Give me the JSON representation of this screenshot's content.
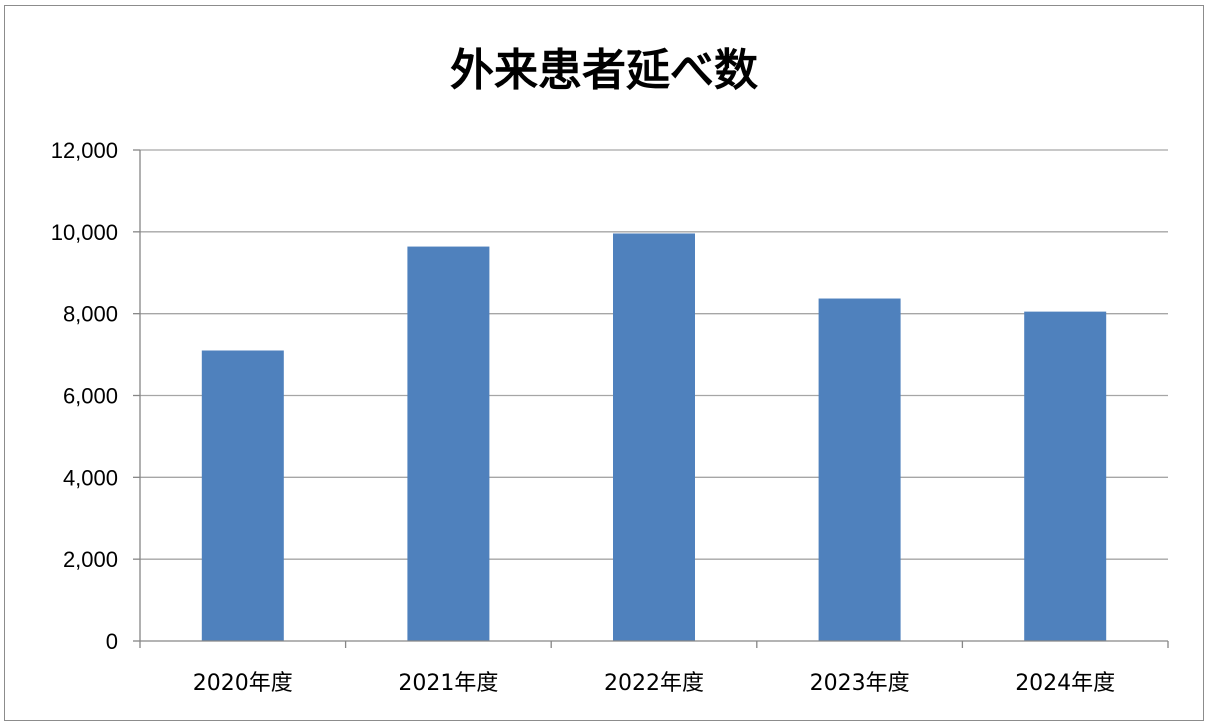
{
  "chart_data": {
    "type": "bar",
    "title": "外来患者延べ数",
    "xlabel": "",
    "ylabel": "",
    "categories": [
      "2020年度",
      "2021年度",
      "2022年度",
      "2023年度",
      "2024年度"
    ],
    "values": [
      7100,
      9640,
      9960,
      8370,
      8050
    ],
    "ylim": [
      0,
      12000
    ],
    "yticks": [
      0,
      2000,
      4000,
      6000,
      8000,
      10000,
      12000
    ],
    "ytick_labels": [
      "0",
      "2,000",
      "4,000",
      "6,000",
      "8,000",
      "10,000",
      "12,000"
    ],
    "grid": true,
    "legend": "none",
    "bar_color": "#4f81bd",
    "grid_color": "#a6a6a6",
    "axis_color": "#868686"
  }
}
